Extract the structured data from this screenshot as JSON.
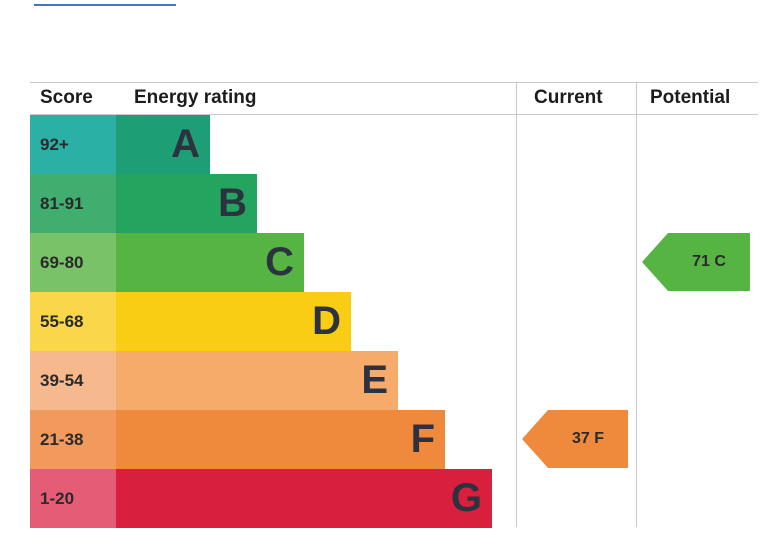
{
  "headers": {
    "score": "Score",
    "energy_rating": "Energy rating",
    "current": "Current",
    "potential": "Potential"
  },
  "chart_data": {
    "type": "bar",
    "categories": [
      "A",
      "B",
      "C",
      "D",
      "E",
      "F",
      "G"
    ],
    "score_bands": [
      "92+",
      "81-91",
      "69-80",
      "55-68",
      "39-54",
      "21-38",
      "1-20"
    ],
    "current": {
      "value": 37,
      "band": "F",
      "label": "37 F"
    },
    "potential": {
      "value": 71,
      "band": "C",
      "label": "71 C"
    }
  },
  "colors": {
    "bars": [
      "#1e9e74",
      "#23a45f",
      "#55b442",
      "#f8cd14",
      "#f7ab6b",
      "#ef8a3c",
      "#d8203e"
    ],
    "score_cells": [
      "#2bb0a6",
      "#3fae6e",
      "#79c267",
      "#f9d64a",
      "#f5b98d",
      "#f29a5e",
      "#e45c75"
    ],
    "current_arrow": "#ef8a3c",
    "potential_arrow": "#55b442"
  }
}
